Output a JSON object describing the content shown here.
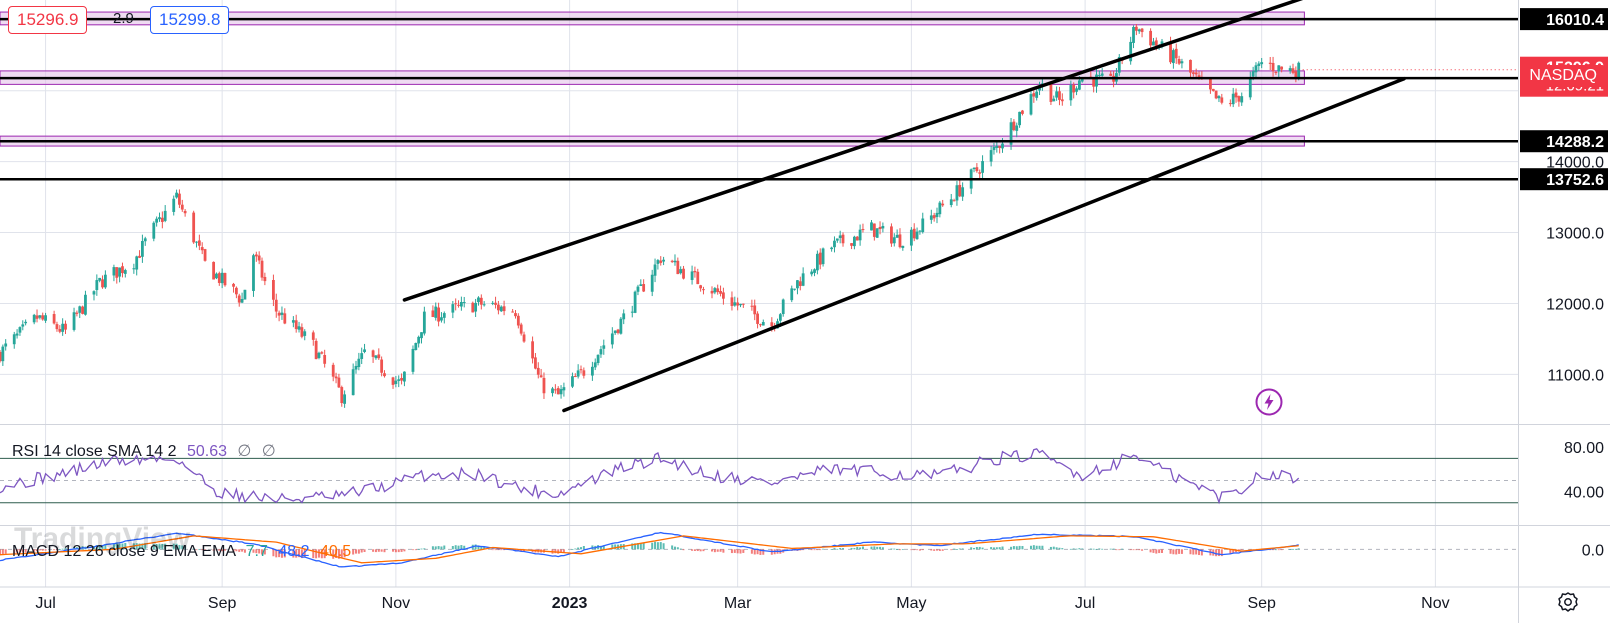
{
  "header": {
    "bid": "15296.9",
    "spread": "2.9",
    "ask": "15299.8"
  },
  "symbol": {
    "name": "NASDAQ",
    "last_price": "15296.9",
    "countdown": "12:09:21"
  },
  "price_axis": {
    "ticks": [
      "13000.0",
      "12000.0",
      "11000.0"
    ],
    "level_labels": [
      "16010.4",
      "15177.5",
      "14288.2",
      "13752.6"
    ],
    "partial_tick": "14000.0"
  },
  "time_axis": {
    "labels": [
      "Jul",
      "Sep",
      "Nov",
      "2023",
      "Mar",
      "May",
      "Jul",
      "Sep",
      "Nov"
    ]
  },
  "rsi": {
    "label": "RSI 14 close SMA 14 2",
    "value": "50.63",
    "na1": "∅",
    "na2": "∅",
    "ticks": [
      "80.00",
      "40.00"
    ]
  },
  "macd": {
    "label": "MACD 12 26 close 9 EMA EMA",
    "hist": "7.7",
    "macd": "48.2",
    "signal": "40.5",
    "tick": "0.0"
  },
  "watermark": "TradingView",
  "colors": {
    "up": "#26a69a",
    "down": "#ef5350",
    "zone_fill": "#e1bee7",
    "zone_border": "#9c27b0",
    "rsi_line": "#7e57c2",
    "rsi_band": "#4caf50",
    "macd_line": "#2962ff",
    "signal_line": "#ff6d00",
    "price_tag": "#f23645"
  },
  "chart_data": {
    "type": "candlestick",
    "title": "NASDAQ",
    "x_range": [
      "2022-06-15",
      "2023-11-30"
    ],
    "ylim": [
      10300,
      16280
    ],
    "close_path": [
      [
        "2022-06-15",
        11300
      ],
      [
        "2022-06-28",
        11800
      ],
      [
        "2022-07-08",
        11600
      ],
      [
        "2022-07-20",
        12300
      ],
      [
        "2022-08-01",
        12600
      ],
      [
        "2022-08-08",
        13050
      ],
      [
        "2022-08-16",
        13500
      ],
      [
        "2022-08-26",
        12550
      ],
      [
        "2022-09-08",
        12050
      ],
      [
        "2022-09-12",
        12700
      ],
      [
        "2022-09-20",
        11900
      ],
      [
        "2022-10-03",
        11400
      ],
      [
        "2022-10-13",
        10700
      ],
      [
        "2022-10-21",
        11300
      ],
      [
        "2022-11-03",
        10850
      ],
      [
        "2022-11-11",
        11800
      ],
      [
        "2022-11-30",
        12000
      ],
      [
        "2022-12-13",
        11900
      ],
      [
        "2022-12-22",
        10850
      ],
      [
        "2022-12-28",
        10700
      ],
      [
        "2023-01-06",
        11050
      ],
      [
        "2023-01-20",
        11800
      ],
      [
        "2023-02-02",
        12650
      ],
      [
        "2023-02-16",
        12300
      ],
      [
        "2023-03-02",
        11950
      ],
      [
        "2023-03-13",
        11700
      ],
      [
        "2023-03-22",
        12300
      ],
      [
        "2023-04-03",
        12800
      ],
      [
        "2023-04-17",
        13050
      ],
      [
        "2023-04-27",
        12900
      ],
      [
        "2023-05-05",
        13100
      ],
      [
        "2023-05-19",
        13650
      ],
      [
        "2023-05-31",
        14200
      ],
      [
        "2023-06-15",
        15100
      ],
      [
        "2023-06-22",
        14850
      ],
      [
        "2023-06-30",
        15200
      ],
      [
        "2023-07-10",
        15100
      ],
      [
        "2023-07-19",
        15900
      ],
      [
        "2023-07-26",
        15650
      ],
      [
        "2023-08-03",
        15400
      ],
      [
        "2023-08-18",
        14800
      ],
      [
        "2023-08-25",
        14950
      ],
      [
        "2023-09-01",
        15400
      ],
      [
        "2023-09-08",
        15300
      ],
      [
        "2023-09-14",
        15296.9
      ]
    ],
    "horizontal_levels": [
      16010.4,
      15177.5,
      14288.2,
      13752.6
    ],
    "zones": [
      [
        15930,
        16110
      ],
      [
        15090,
        15280
      ],
      [
        14220,
        14360
      ]
    ],
    "trend_lines": [
      {
        "from": [
          "2022-11-04",
          12050
        ],
        "to": [
          "2023-09-24",
          16420
        ]
      },
      {
        "from": [
          "2022-12-30",
          10490
        ],
        "to": [
          "2023-10-21",
          15170
        ]
      }
    ],
    "rsi": {
      "ylim": [
        10,
        100
      ],
      "bands": [
        70,
        30
      ],
      "midline": 50,
      "path": [
        [
          "2022-06-15",
          45
        ],
        [
          "2022-07-05",
          55
        ],
        [
          "2022-07-25",
          68
        ],
        [
          "2022-08-16",
          70
        ],
        [
          "2022-08-30",
          40
        ],
        [
          "2022-09-20",
          33
        ],
        [
          "2022-10-13",
          36
        ],
        [
          "2022-10-28",
          45
        ],
        [
          "2022-11-11",
          55
        ],
        [
          "2022-11-30",
          56
        ],
        [
          "2022-12-16",
          42
        ],
        [
          "2022-12-28",
          38
        ],
        [
          "2023-01-20",
          62
        ],
        [
          "2023-02-02",
          70
        ],
        [
          "2023-02-20",
          55
        ],
        [
          "2023-03-13",
          48
        ],
        [
          "2023-04-03",
          60
        ],
        [
          "2023-04-25",
          56
        ],
        [
          "2023-05-10",
          54
        ],
        [
          "2023-05-31",
          70
        ],
        [
          "2023-06-15",
          73
        ],
        [
          "2023-06-30",
          55
        ],
        [
          "2023-07-19",
          73
        ],
        [
          "2023-07-31",
          55
        ],
        [
          "2023-08-18",
          35
        ],
        [
          "2023-08-25",
          42
        ],
        [
          "2023-09-01",
          58
        ],
        [
          "2023-09-14",
          50.63
        ]
      ]
    },
    "macd": {
      "ylim": [
        -420,
        260
      ],
      "macd_path": [
        [
          "2022-06-15",
          -120
        ],
        [
          "2022-07-20",
          40
        ],
        [
          "2022-08-16",
          180
        ],
        [
          "2022-09-12",
          60
        ],
        [
          "2022-10-13",
          -200
        ],
        [
          "2022-11-03",
          -150
        ],
        [
          "2022-11-30",
          40
        ],
        [
          "2022-12-28",
          -80
        ],
        [
          "2023-02-02",
          190
        ],
        [
          "2023-03-13",
          -30
        ],
        [
          "2023-04-17",
          80
        ],
        [
          "2023-05-10",
          40
        ],
        [
          "2023-06-15",
          170
        ],
        [
          "2023-07-19",
          140
        ],
        [
          "2023-08-18",
          -60
        ],
        [
          "2023-09-14",
          48.2
        ]
      ],
      "signal_path": [
        [
          "2022-06-15",
          -60
        ],
        [
          "2022-07-25",
          0
        ],
        [
          "2022-08-22",
          150
        ],
        [
          "2022-09-20",
          80
        ],
        [
          "2022-10-20",
          -150
        ],
        [
          "2022-11-15",
          -100
        ],
        [
          "2022-12-05",
          20
        ],
        [
          "2023-01-05",
          -50
        ],
        [
          "2023-02-10",
          150
        ],
        [
          "2023-03-20",
          10
        ],
        [
          "2023-04-25",
          60
        ],
        [
          "2023-05-20",
          60
        ],
        [
          "2023-06-25",
          150
        ],
        [
          "2023-07-25",
          140
        ],
        [
          "2023-08-25",
          -20
        ],
        [
          "2023-09-14",
          40.5
        ]
      ]
    }
  }
}
